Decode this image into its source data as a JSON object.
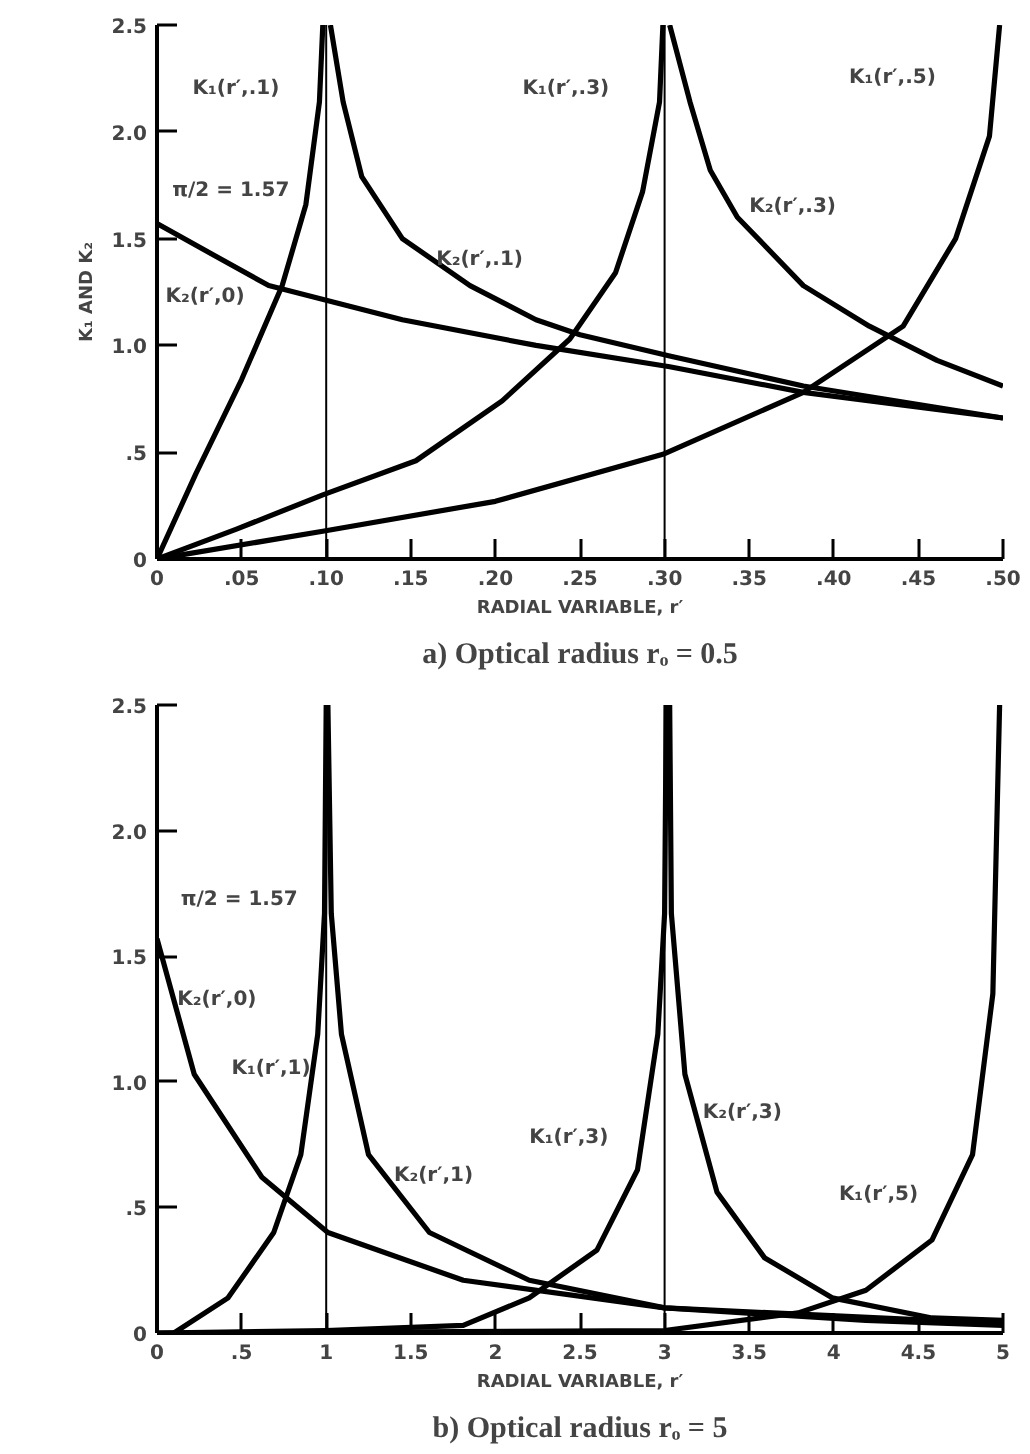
{
  "chart_data": [
    {
      "type": "line",
      "title": "a) Optical radius rₒ = 0.5",
      "xlabel": "RADIAL VARIABLE, r′",
      "ylabel": "K₁ AND K₂",
      "xlim": [
        0,
        0.5
      ],
      "ylim": [
        0,
        2.5
      ],
      "xticks": [
        0,
        {
          "value": 0.05,
          "label": ".05"
        },
        {
          "value": 0.1,
          "label": ".10"
        },
        {
          "value": 0.15,
          "label": ".15"
        },
        {
          "value": 0.2,
          "label": ".20"
        },
        {
          "value": 0.25,
          "label": ".25"
        },
        {
          "value": 0.3,
          "label": ".30"
        },
        {
          "value": 0.35,
          "label": ".35"
        },
        {
          "value": 0.4,
          "label": ".40"
        },
        {
          "value": 0.45,
          "label": ".45"
        },
        {
          "value": 0.5,
          "label": ".50"
        }
      ],
      "yticks": [
        0,
        {
          "value": 0.5,
          "label": ".5"
        },
        {
          "value": 1,
          "label": "1.0"
        },
        {
          "value": 1.5,
          "label": "1.5"
        },
        {
          "value": 2,
          "label": "2.0"
        },
        {
          "value": 2.5,
          "label": "2.5"
        }
      ],
      "grid": false,
      "legend": false,
      "marker": "none",
      "line_style": "solid",
      "series": [
        {
          "name": "K₁(r′,.1)",
          "color": "#000000",
          "x": [
            0,
            0.023,
            0.05,
            0.074,
            0.088,
            0.096,
            0.098
          ],
          "values": [
            0,
            0.4,
            0.84,
            1.28,
            1.66,
            2.14,
            2.5
          ]
        },
        {
          "name": "K₂(r′,.1)",
          "color": "#000000",
          "x": [
            0.1025,
            0.11,
            0.121,
            0.145,
            0.185,
            0.224,
            0.25,
            0.303,
            0.382,
            0.5
          ],
          "values": [
            2.5,
            2.14,
            1.79,
            1.5,
            1.28,
            1.12,
            1.05,
            0.95,
            0.81,
            0.66
          ]
        },
        {
          "name": "K₂(r′,0)",
          "color": "#000000",
          "x": [
            0,
            0.066,
            0.145,
            0.224,
            0.303,
            0.382,
            0.5
          ],
          "values": [
            1.57,
            1.28,
            1.12,
            1.0,
            0.9,
            0.78,
            0.66
          ]
        },
        {
          "name": "K₁(r′,.3)",
          "color": "#000000",
          "x": [
            0,
            0.047,
            0.098,
            0.153,
            0.204,
            0.244,
            0.271,
            0.287,
            0.297,
            0.299
          ],
          "values": [
            0,
            0.14,
            0.3,
            0.46,
            0.74,
            1.03,
            1.34,
            1.72,
            2.14,
            2.5
          ]
        },
        {
          "name": "K₂(r′,.3)",
          "color": "#000000",
          "x": [
            0.303,
            0.315,
            0.327,
            0.343,
            0.382,
            0.421,
            0.461,
            0.5
          ],
          "values": [
            2.5,
            2.14,
            1.82,
            1.6,
            1.28,
            1.09,
            0.93,
            0.81
          ]
        },
        {
          "name": "K₁(r′,.5)",
          "color": "#000000",
          "x": [
            0,
            0.098,
            0.2,
            0.299,
            0.382,
            0.441,
            0.472,
            0.492,
            0.498
          ],
          "values": [
            0,
            0.13,
            0.27,
            0.49,
            0.78,
            1.09,
            1.5,
            1.98,
            2.5
          ]
        }
      ],
      "ref_lines": [
        {
          "axis": "x",
          "value": 0.1
        },
        {
          "axis": "x",
          "value": 0.3
        }
      ],
      "annotations": [
        "π/2 = 1.57"
      ]
    },
    {
      "type": "line",
      "title": "b) Optical radius rₒ = 5",
      "xlabel": "RADIAL VARIABLE, r′",
      "xlim": [
        0,
        5
      ],
      "ylim": [
        0,
        2.5
      ],
      "xticks": [
        0,
        {
          "value": 0.5,
          "label": ".5"
        },
        1,
        1.5,
        2,
        2.5,
        3,
        3.5,
        4,
        4.5,
        5
      ],
      "yticks": [
        0,
        {
          "value": 0.5,
          "label": ".5"
        },
        {
          "value": 1,
          "label": "1.0"
        },
        {
          "value": 1.5,
          "label": "1.5"
        },
        {
          "value": 2,
          "label": "2.0"
        },
        {
          "value": 2.5,
          "label": "2.5"
        }
      ],
      "grid": false,
      "legend": false,
      "marker": "none",
      "line_style": "solid",
      "series": [
        {
          "name": "K₂(r′,0)",
          "color": "#000000",
          "x": [
            0,
            0.22,
            0.62,
            1.01,
            1.81,
            3.0,
            4.58,
            5
          ],
          "values": [
            1.57,
            1.03,
            0.62,
            0.4,
            0.21,
            0.1,
            0.05,
            0.04
          ]
        },
        {
          "name": "K₁(r′,1)",
          "color": "#000000",
          "x": [
            0.1,
            0.42,
            0.69,
            0.85,
            0.95,
            0.99,
            1.0
          ],
          "values": [
            0,
            0.14,
            0.4,
            0.71,
            1.19,
            1.67,
            2.5
          ]
        },
        {
          "name": "K₂(r′,1)",
          "color": "#000000",
          "x": [
            1.01,
            1.03,
            1.09,
            1.25,
            1.61,
            2.2,
            3.0,
            4.19,
            5
          ],
          "values": [
            2.5,
            1.67,
            1.19,
            0.71,
            0.4,
            0.21,
            0.1,
            0.05,
            0.03
          ]
        },
        {
          "name": "K₁(r′,3)",
          "color": "#000000",
          "x": [
            0,
            1.0,
            1.81,
            2.2,
            2.6,
            2.84,
            2.96,
            3.0,
            3.01
          ],
          "values": [
            0,
            0.01,
            0.03,
            0.14,
            0.33,
            0.65,
            1.19,
            1.67,
            2.5
          ]
        },
        {
          "name": "K₂(r′,3)",
          "color": "#000000",
          "x": [
            3.03,
            3.04,
            3.12,
            3.31,
            3.59,
            3.99,
            4.58,
            5
          ],
          "values": [
            2.5,
            1.67,
            1.03,
            0.56,
            0.3,
            0.14,
            0.06,
            0.05
          ]
        },
        {
          "name": "K₁(r′,5)",
          "color": "#000000",
          "x": [
            0,
            3.0,
            3.79,
            4.19,
            4.58,
            4.82,
            4.94,
            4.98
          ],
          "values": [
            0,
            0.01,
            0.08,
            0.17,
            0.37,
            0.71,
            1.35,
            2.5
          ]
        }
      ],
      "ref_lines": [
        {
          "axis": "x",
          "value": 1
        },
        {
          "axis": "x",
          "value": 3
        }
      ],
      "annotations": [
        "π/2 = 1.57"
      ]
    }
  ]
}
